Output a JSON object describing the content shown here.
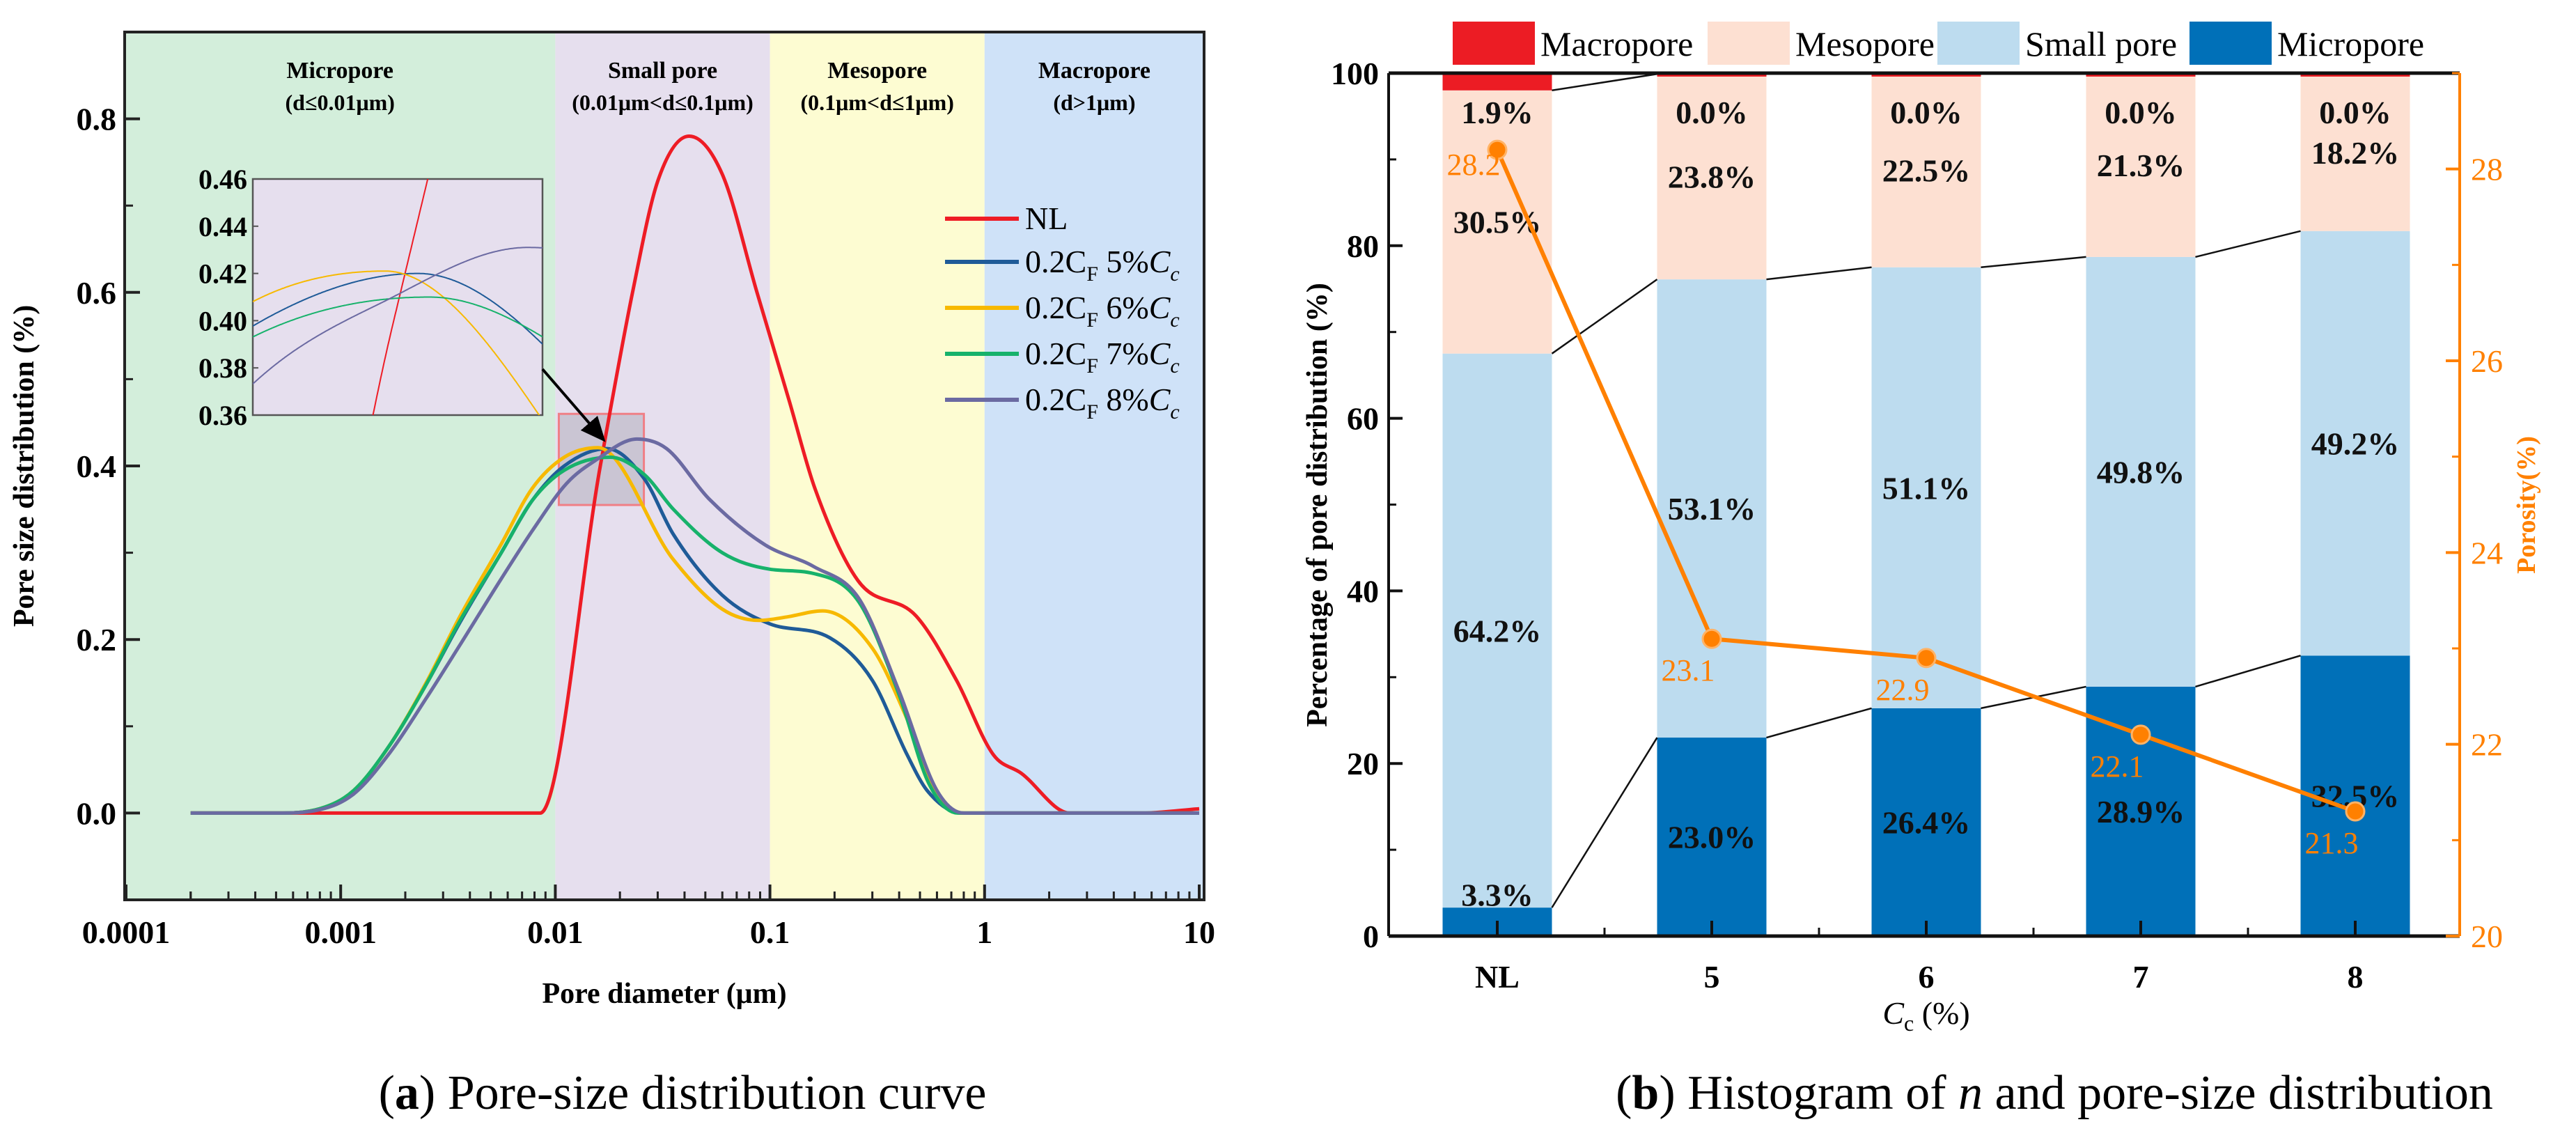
{
  "chart_data": [
    {
      "type": "line",
      "title": "",
      "xlabel": "Pore diameter (μm)",
      "ylabel": "Pore size distribution (%)",
      "xscale": "log",
      "xlim": [
        0.0001,
        10
      ],
      "ylim": [
        -0.1,
        0.9
      ],
      "xticks": [
        {
          "v": 0.0001,
          "label": "0.0001"
        },
        {
          "v": 0.001,
          "label": "0.001"
        },
        {
          "v": 0.01,
          "label": "0.01"
        },
        {
          "v": 0.1,
          "label": "0.1"
        },
        {
          "v": 1,
          "label": "1"
        },
        {
          "v": 10,
          "label": "10"
        }
      ],
      "yticks": [
        {
          "v": 0,
          "label": "0.0"
        },
        {
          "v": 0.2,
          "label": "0.2"
        },
        {
          "v": 0.4,
          "label": "0.4"
        },
        {
          "v": 0.6,
          "label": "0.6"
        },
        {
          "v": 0.8,
          "label": "0.8"
        }
      ],
      "regions": [
        {
          "name": "Micropore",
          "range": "(d≤0.01μm)",
          "from": null,
          "to": 0.01,
          "color": "#d3eedb"
        },
        {
          "name": "Small pore",
          "range": "(0.01μm<d≤0.1μm)",
          "from": 0.01,
          "to": 0.1,
          "color": "#e6dfee"
        },
        {
          "name": "Mesopore",
          "range": "(0.1μm<d≤1μm)",
          "from": 0.1,
          "to": 1,
          "color": "#fdfcd2"
        },
        {
          "name": "Macropore",
          "range": "(d>1μm)",
          "from": 1,
          "to": null,
          "color": "#cfe2f8"
        }
      ],
      "legend_position": "right",
      "series": [
        {
          "legend": {
            "pre": "NL",
            "sub": "",
            "pct": "",
            "it": "",
            "sub2": ""
          },
          "color": "#ee1c25",
          "x": [
            0.0002,
            0.0085,
            0.0162,
            0.0229,
            0.03,
            0.042,
            0.06,
            0.087,
            0.123,
            0.162,
            0.257,
            0.48,
            0.74,
            1.1,
            1.48,
            2.5,
            5.4,
            10
          ],
          "y": [
            0,
            0,
            0.4,
            0.6,
            0.728,
            0.78,
            0.736,
            0.6,
            0.475,
            0.374,
            0.268,
            0.227,
            0.153,
            0.067,
            0.046,
            0,
            0,
            0.005
          ]
        },
        {
          "legend": {
            "pre": "0.2C",
            "sub": "F",
            "pct": " 5%",
            "it": "C",
            "sub2": "c"
          },
          "color": "#1f5b98",
          "x": [
            0.0002,
            0.0005,
            0.0008,
            0.00115,
            0.0017,
            0.0025,
            0.0036,
            0.0056,
            0.0078,
            0.011,
            0.0174,
            0.026,
            0.0355,
            0.06,
            0.1,
            0.19,
            0.3,
            0.436,
            0.54,
            0.78,
            10
          ],
          "y": [
            0,
            0,
            0.005,
            0.026,
            0.079,
            0.148,
            0.22,
            0.3,
            0.36,
            0.4,
            0.42,
            0.385,
            0.321,
            0.251,
            0.218,
            0.202,
            0.153,
            0.067,
            0.026,
            0,
            0
          ]
        },
        {
          "legend": {
            "pre": "0.2C",
            "sub": "F",
            "pct": " 6%",
            "it": "C",
            "sub2": "c"
          },
          "color": "#f7b900",
          "x": [
            0.0002,
            0.0005,
            0.0008,
            0.00115,
            0.0017,
            0.0025,
            0.0036,
            0.0056,
            0.0078,
            0.011,
            0.0158,
            0.0355,
            0.06,
            0.089,
            0.12,
            0.176,
            0.3,
            0.436,
            0.6,
            0.78,
            10
          ],
          "y": [
            0,
            0,
            0.005,
            0.026,
            0.079,
            0.15,
            0.227,
            0.31,
            0.374,
            0.41,
            0.421,
            0.292,
            0.235,
            0.222,
            0.226,
            0.233,
            0.19,
            0.108,
            0.022,
            0,
            0
          ]
        },
        {
          "legend": {
            "pre": "0.2C",
            "sub": "F",
            "pct": " 7%",
            "it": "C",
            "sub2": "c"
          },
          "color": "#17b26b",
          "x": [
            0.0002,
            0.0005,
            0.0008,
            0.00115,
            0.0017,
            0.0025,
            0.0036,
            0.0056,
            0.0078,
            0.011,
            0.018,
            0.026,
            0.0355,
            0.06,
            0.1,
            0.16,
            0.26,
            0.4,
            0.55,
            0.75,
            10
          ],
          "y": [
            0,
            0,
            0.005,
            0.026,
            0.079,
            0.148,
            0.222,
            0.3,
            0.36,
            0.395,
            0.41,
            0.39,
            0.35,
            0.3,
            0.281,
            0.276,
            0.243,
            0.136,
            0.034,
            0,
            0
          ]
        },
        {
          "legend": {
            "pre": "0.2C",
            "sub": "F",
            "pct": " 8%",
            "it": "C",
            "sub2": "c"
          },
          "color": "#6b6aa2",
          "x": [
            0.0002,
            0.0005,
            0.0008,
            0.00115,
            0.0017,
            0.0025,
            0.0036,
            0.0056,
            0.0078,
            0.0113,
            0.0155,
            0.024,
            0.033,
            0.052,
            0.095,
            0.16,
            0.26,
            0.4,
            0.6,
            0.8,
            10
          ],
          "y": [
            0,
            0,
            0.004,
            0.022,
            0.07,
            0.132,
            0.194,
            0.27,
            0.325,
            0.38,
            0.407,
            0.431,
            0.42,
            0.362,
            0.309,
            0.284,
            0.247,
            0.14,
            0.026,
            0,
            0
          ]
        }
      ],
      "inset": {
        "xlim": [
          0.0107,
          0.0251
        ],
        "ylim": [
          0.36,
          0.46
        ],
        "yticks": [
          {
            "v": 0.36,
            "label": "0.36"
          },
          {
            "v": 0.38,
            "label": "0.38"
          },
          {
            "v": 0.4,
            "label": "0.40"
          },
          {
            "v": 0.42,
            "label": "0.42"
          },
          {
            "v": 0.44,
            "label": "0.44"
          },
          {
            "v": 0.46,
            "label": "0.46"
          }
        ]
      }
    },
    {
      "type": "bar",
      "stacked": true,
      "title": "",
      "categories": [
        "NL",
        "5",
        "6",
        "7",
        "8"
      ],
      "xlabel": {
        "it": "C",
        "sub": "c",
        "rest": " (%)"
      },
      "ylabel": "Percentage of pore distribution (%)",
      "ylim": [
        0,
        100
      ],
      "yticks": [
        "0",
        "20",
        "40",
        "60",
        "80",
        "100"
      ],
      "y2label": "Porosity(%)",
      "y2lim": [
        20,
        29
      ],
      "y2ticks": [
        "20",
        "22",
        "24",
        "26",
        "28"
      ],
      "legend_position": "top",
      "series": [
        {
          "name": "Micropore",
          "color": "#0070b8",
          "values": [
            3.3,
            23.0,
            26.4,
            28.9,
            32.5
          ],
          "labels": [
            "3.3%",
            "23.0%",
            "26.4%",
            "28.9%",
            "32.5%"
          ]
        },
        {
          "name": "Small pore",
          "color": "#bddcef",
          "values": [
            64.2,
            53.1,
            51.1,
            49.8,
            49.2
          ],
          "labels": [
            "64.2%",
            "53.1%",
            "51.1%",
            "49.8%",
            "49.2%"
          ]
        },
        {
          "name": "Mesopore",
          "color": "#fde0d2",
          "values": [
            30.5,
            23.8,
            22.5,
            21.3,
            18.2
          ],
          "labels": [
            "30.5%",
            "23.8%",
            "22.5%",
            "21.3%",
            "18.2%"
          ]
        },
        {
          "name": "Macropore",
          "color": "#ec1c24",
          "values": [
            1.9,
            0.0,
            0.0,
            0.0,
            0.0
          ],
          "labels": [
            "1.9%",
            "0.0%",
            "0.0%",
            "0.0%",
            "0.0%"
          ]
        }
      ],
      "legend_order": [
        "Macropore",
        "Mesopore",
        "Small pore",
        "Micropore"
      ],
      "line_series": {
        "name": "Porosity",
        "color": "#ff8000",
        "values": [
          28.2,
          23.1,
          22.9,
          22.1,
          21.3
        ],
        "labels": [
          "28.2",
          "23.1",
          "22.9",
          "22.1",
          "21.3"
        ]
      }
    }
  ],
  "captions": {
    "a": {
      "open": "(",
      "letter": "a",
      "close": ")",
      "text": " Pore-size distribution curve"
    },
    "b": {
      "open": "(",
      "letter": "b",
      "close": ")",
      "text1": " Histogram of ",
      "it": "n",
      "text2": " and pore-size distribution"
    }
  }
}
